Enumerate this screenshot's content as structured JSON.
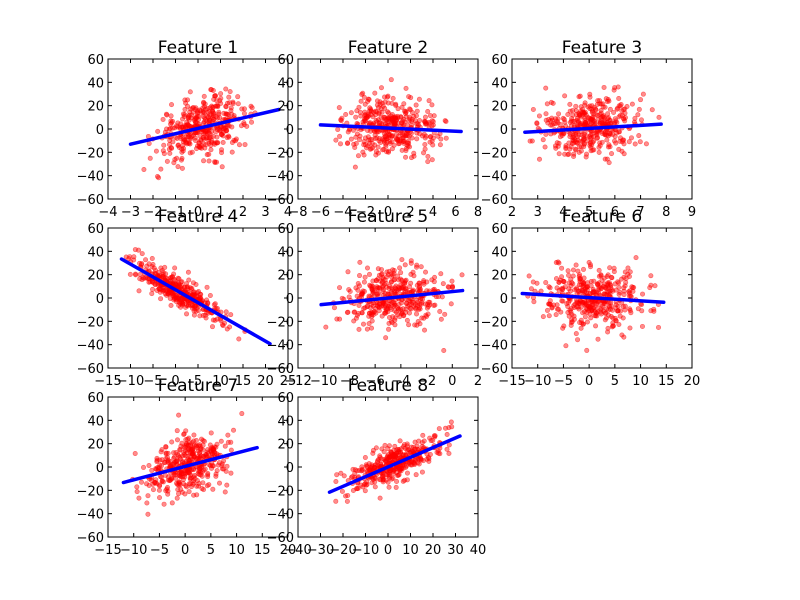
{
  "colors": {
    "points": "#ff0000",
    "fit_line": "#0000ff",
    "axes": "#000000",
    "background": "#ffffff"
  },
  "chart_data": [
    {
      "type": "scatter",
      "title": "Feature 1",
      "xlabel": "",
      "ylabel": "",
      "xlim": [
        -4,
        4
      ],
      "ylim": [
        -60,
        60
      ],
      "grid": false,
      "xticks": [
        "−4",
        "−3",
        "−2",
        "−1",
        "0",
        "1",
        "2",
        "3",
        "4"
      ],
      "yticks": [
        "−60",
        "−40",
        "−20",
        "0",
        "20",
        "40",
        "60"
      ],
      "x_range": [
        -3.0,
        3.6
      ],
      "fit": {
        "slope": 4.5,
        "intercept": 0.5
      },
      "y_sd": 12,
      "x_dist": "normal",
      "x_mean": 0.2,
      "x_sd": 1.0,
      "n_points": 400
    },
    {
      "type": "scatter",
      "title": "Feature 2",
      "xlabel": "",
      "ylabel": "",
      "xlim": [
        -8,
        8
      ],
      "ylim": [
        -60,
        60
      ],
      "grid": false,
      "xticks": [
        "−8",
        "−6",
        "−4",
        "−2",
        "0",
        "2",
        "4",
        "6",
        "8"
      ],
      "yticks": [
        "−60",
        "−40",
        "−20",
        "0",
        "20",
        "40",
        "60"
      ],
      "x_range": [
        -6.0,
        6.5
      ],
      "fit": {
        "slope": -0.45,
        "intercept": 0.8
      },
      "y_sd": 13,
      "x_dist": "normal",
      "x_mean": 0.3,
      "x_sd": 2.0,
      "n_points": 400
    },
    {
      "type": "scatter",
      "title": "Feature 3",
      "xlabel": "",
      "ylabel": "",
      "xlim": [
        2,
        9
      ],
      "ylim": [
        -60,
        60
      ],
      "grid": false,
      "xticks": [
        "2",
        "3",
        "4",
        "5",
        "6",
        "7",
        "8",
        "9"
      ],
      "yticks": [
        "−60",
        "−40",
        "−20",
        "0",
        "20",
        "40",
        "60"
      ],
      "x_range": [
        2.5,
        7.8
      ],
      "fit": {
        "slope": 1.3,
        "intercept": -6.0
      },
      "y_sd": 13,
      "x_dist": "normal",
      "x_mean": 5.0,
      "x_sd": 1.0,
      "n_points": 400
    },
    {
      "type": "scatter",
      "title": "Feature 4",
      "xlabel": "",
      "ylabel": "",
      "xlim": [
        -15,
        25
      ],
      "ylim": [
        -60,
        60
      ],
      "grid": false,
      "xticks": [
        "−15",
        "−10",
        "−5",
        "0",
        "5",
        "10",
        "15",
        "20",
        "25"
      ],
      "yticks": [
        "−60",
        "−40",
        "−20",
        "0",
        "20",
        "40",
        "60"
      ],
      "x_range": [
        -12.0,
        21.0
      ],
      "fit": {
        "slope": -2.2,
        "intercept": 7.0
      },
      "y_sd": 6,
      "x_dist": "normal",
      "x_mean": 1.0,
      "x_sd": 5.0,
      "n_points": 400
    },
    {
      "type": "scatter",
      "title": "Feature 5",
      "xlabel": "",
      "ylabel": "",
      "xlim": [
        -12,
        2
      ],
      "ylim": [
        -60,
        60
      ],
      "grid": false,
      "xticks": [
        "−12",
        "−10",
        "−8",
        "−6",
        "−4",
        "−2",
        "0",
        "2"
      ],
      "yticks": [
        "−60",
        "−40",
        "−20",
        "0",
        "20",
        "40",
        "60"
      ],
      "x_range": [
        -10.2,
        0.8
      ],
      "fit": {
        "slope": 1.1,
        "intercept": 5.5
      },
      "y_sd": 13,
      "x_dist": "normal",
      "x_mean": -4.5,
      "x_sd": 2.0,
      "n_points": 400
    },
    {
      "type": "scatter",
      "title": "Feature 6",
      "xlabel": "",
      "ylabel": "",
      "xlim": [
        -15,
        20
      ],
      "ylim": [
        -60,
        60
      ],
      "grid": false,
      "xticks": [
        "−15",
        "−10",
        "−5",
        "0",
        "5",
        "10",
        "15",
        "20"
      ],
      "yticks": [
        "−60",
        "−40",
        "−20",
        "0",
        "20",
        "40",
        "60"
      ],
      "x_range": [
        -13.0,
        14.5
      ],
      "fit": {
        "slope": -0.27,
        "intercept": 0.3
      },
      "y_sd": 13,
      "x_dist": "normal",
      "x_mean": 0.5,
      "x_sd": 5.0,
      "n_points": 400
    },
    {
      "type": "scatter",
      "title": "Feature 7",
      "xlabel": "",
      "ylabel": "",
      "xlim": [
        -15,
        20
      ],
      "ylim": [
        -60,
        60
      ],
      "grid": false,
      "xticks": [
        "−15",
        "−10",
        "−5",
        "0",
        "5",
        "10",
        "15",
        "20"
      ],
      "yticks": [
        "−60",
        "−40",
        "−20",
        "0",
        "20",
        "40",
        "60"
      ],
      "x_range": [
        -12.0,
        14.0
      ],
      "fit": {
        "slope": 1.15,
        "intercept": 0.5
      },
      "y_sd": 12,
      "x_dist": "normal",
      "x_mean": 0.5,
      "x_sd": 4.0,
      "n_points": 400
    },
    {
      "type": "scatter",
      "title": "Feature 8",
      "xlabel": "",
      "ylabel": "",
      "xlim": [
        -40,
        40
      ],
      "ylim": [
        -60,
        60
      ],
      "grid": false,
      "xticks": [
        "−40",
        "−30",
        "−20",
        "−10",
        "0",
        "10",
        "20",
        "30",
        "40"
      ],
      "yticks": [
        "−60",
        "−40",
        "−20",
        "0",
        "20",
        "40",
        "60"
      ],
      "x_range": [
        -26.0,
        32.0
      ],
      "fit": {
        "slope": 0.83,
        "intercept": 0.0
      },
      "y_sd": 8,
      "x_dist": "normal",
      "x_mean": 2.0,
      "x_sd": 10.0,
      "n_points": 400
    }
  ]
}
